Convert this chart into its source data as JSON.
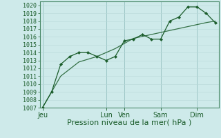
{
  "background_color": "#ceeaea",
  "grid_color_minor": "#b8d8d8",
  "grid_color_major": "#9dc4c4",
  "line_color": "#1a5c2a",
  "marker_color": "#1a5c2a",
  "ylim": [
    1007,
    1020.5
  ],
  "yticks": [
    1007,
    1008,
    1009,
    1010,
    1011,
    1012,
    1013,
    1014,
    1015,
    1016,
    1017,
    1018,
    1019,
    1020
  ],
  "xlabel": "Pression niveau de la mer( hPa )",
  "xlabel_fontsize": 8,
  "tick_fontsize": 6,
  "day_labels": [
    "Jeu",
    "Lun",
    "Ven",
    "Sam",
    "Dim"
  ],
  "day_positions": [
    0.0,
    3.5,
    4.5,
    6.5,
    8.5
  ],
  "vline_positions": [
    0.0,
    3.5,
    4.5,
    6.5,
    8.5
  ],
  "xlim": [
    -0.15,
    9.7
  ],
  "series1_x": [
    0,
    0.5,
    1.0,
    1.5,
    2.0,
    2.5,
    3.0,
    3.5,
    4.0,
    4.5,
    5.0,
    5.5,
    6.0,
    6.5,
    7.0,
    7.5,
    8.0,
    8.5,
    9.0,
    9.5
  ],
  "series1_y": [
    1007.0,
    1009.0,
    1012.5,
    1013.5,
    1014.0,
    1014.0,
    1013.5,
    1013.0,
    1013.5,
    1015.5,
    1015.7,
    1016.3,
    1015.7,
    1015.7,
    1018.0,
    1018.5,
    1019.8,
    1019.8,
    1019.0,
    1017.8
  ],
  "series2_x": [
    0,
    1.0,
    2.0,
    3.0,
    4.0,
    5.0,
    6.0,
    7.0,
    8.0,
    9.0,
    9.5
  ],
  "series2_y": [
    1007.0,
    1011.0,
    1012.8,
    1013.5,
    1014.5,
    1015.8,
    1016.3,
    1016.8,
    1017.3,
    1017.8,
    1018.0
  ]
}
